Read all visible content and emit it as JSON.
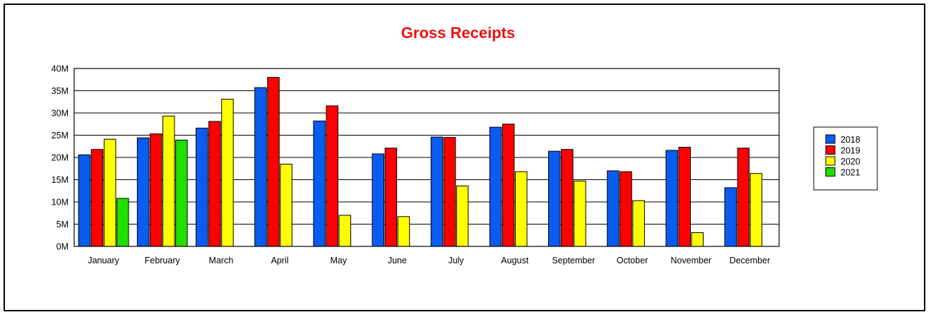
{
  "chart_data": {
    "type": "bar",
    "title": "Gross Receipts",
    "xlabel": "",
    "ylabel": "",
    "ylim": [
      0,
      40
    ],
    "ytick_labels": [
      "0M",
      "5M",
      "10M",
      "15M",
      "20M",
      "25M",
      "30M",
      "35M",
      "40M"
    ],
    "categories": [
      "January",
      "February",
      "March",
      "April",
      "May",
      "June",
      "July",
      "August",
      "September",
      "October",
      "November",
      "December"
    ],
    "series": [
      {
        "name": "2018",
        "color": "#0a5cf0",
        "values": [
          20.6,
          24.4,
          26.6,
          35.7,
          28.2,
          20.8,
          24.6,
          26.8,
          21.4,
          17.0,
          21.6,
          13.2
        ]
      },
      {
        "name": "2019",
        "color": "#ff0000",
        "values": [
          21.8,
          25.3,
          28.1,
          38.0,
          31.6,
          22.1,
          24.5,
          27.5,
          21.8,
          16.8,
          22.3,
          22.1
        ]
      },
      {
        "name": "2020",
        "color": "#ffff00",
        "values": [
          24.1,
          29.3,
          33.1,
          18.5,
          7.0,
          6.7,
          13.6,
          16.8,
          14.7,
          10.3,
          3.1,
          16.4
        ]
      },
      {
        "name": "2021",
        "color": "#22dd00",
        "values": [
          10.8,
          23.9,
          null,
          null,
          null,
          null,
          null,
          null,
          null,
          null,
          null,
          null
        ]
      }
    ],
    "grid": true,
    "legend_position": "right"
  }
}
